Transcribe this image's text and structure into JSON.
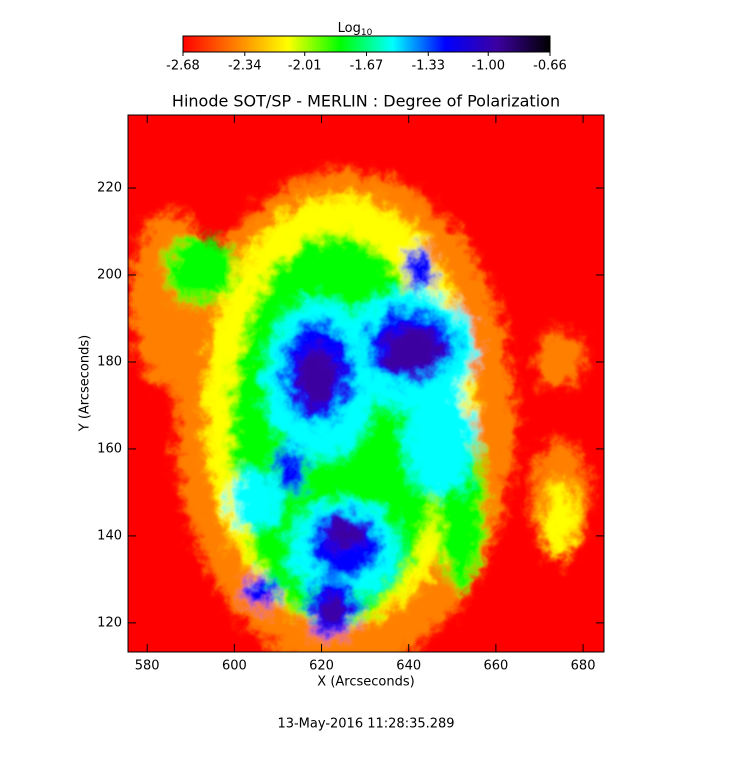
{
  "chart_data": {
    "type": "heatmap",
    "title": "Hinode SOT/SP - MERLIN : Degree of Polarization",
    "x_label": "X (Arcseconds)",
    "y_label": "Y (Arcseconds)",
    "xlim": [
      575.6,
      684.8
    ],
    "xticks": [
      580,
      600,
      620,
      640,
      660,
      680
    ],
    "ylim": [
      113.3,
      236.8
    ],
    "yticks": [
      120,
      140,
      160,
      180,
      200,
      220
    ],
    "colorbar_label": "Log",
    "colorbar_label_subscript": "10",
    "clim": [
      -2.68,
      -0.66
    ],
    "colorbar_ticks": [
      -2.68,
      -2.34,
      -2.01,
      -1.67,
      -1.33,
      {
        "value": -1,
        "label": "-1.00"
      },
      -0.66
    ],
    "colormap": [
      "#ff0000",
      "#ff8000",
      "#ffff00",
      "#00ff00",
      "#00ffff",
      "#0000ff",
      "#3c00a0",
      "#000000"
    ],
    "timestamp": "13-May-2016 11:28:35.289"
  }
}
